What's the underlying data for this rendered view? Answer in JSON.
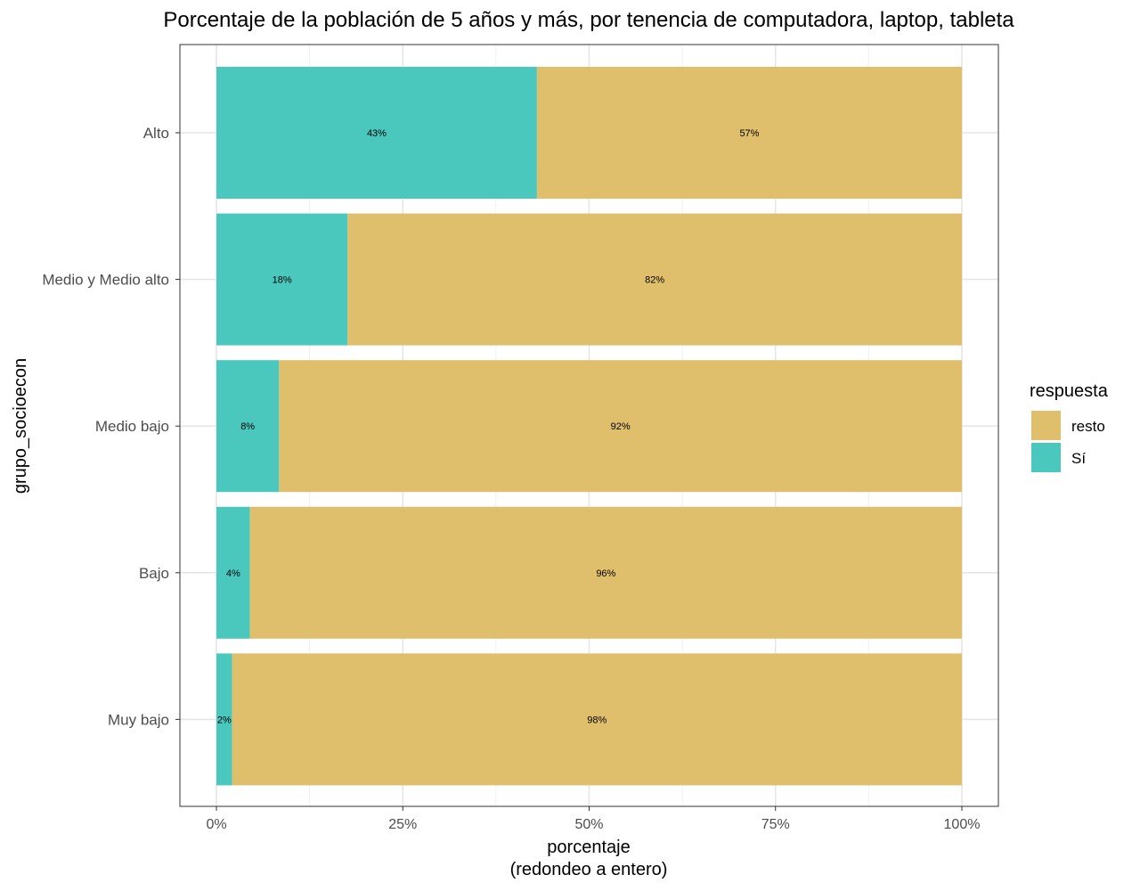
{
  "chart_data": {
    "type": "bar",
    "orientation": "horizontal",
    "stacked": "percent",
    "title": "Porcentaje de la población de 5 años y más, por tenencia de computadora, laptop, tableta",
    "xlabel": "porcentaje",
    "xlabel_sub": "(redondeo a entero)",
    "ylabel": "grupo_socioecon",
    "xlim": [
      0,
      1
    ],
    "x_ticks": [
      0,
      0.25,
      0.5,
      0.75,
      1
    ],
    "x_tick_labels": [
      "0%",
      "25%",
      "50%",
      "75%",
      "100%"
    ],
    "categories": [
      "Alto",
      "Medio y Medio alto",
      "Medio bajo",
      "Bajo",
      "Muy bajo"
    ],
    "series": [
      {
        "name": "Sí",
        "color": "#4BC8BE",
        "values": [
          0.43,
          0.176,
          0.084,
          0.045,
          0.021
        ],
        "labels": [
          "43%",
          "18%",
          "8%",
          "4%",
          "2%"
        ]
      },
      {
        "name": "resto",
        "color": "#E0BF6C",
        "values": [
          0.57,
          0.824,
          0.916,
          0.955,
          0.979
        ],
        "labels": [
          "57%",
          "82%",
          "92%",
          "96%",
          "98%"
        ]
      }
    ],
    "grid": true,
    "legend": {
      "title": "respuesta",
      "position": "right",
      "entries": [
        {
          "name": "resto",
          "color": "#E0BF6C"
        },
        {
          "name": "Sí",
          "color": "#4BC8BE"
        }
      ]
    }
  }
}
